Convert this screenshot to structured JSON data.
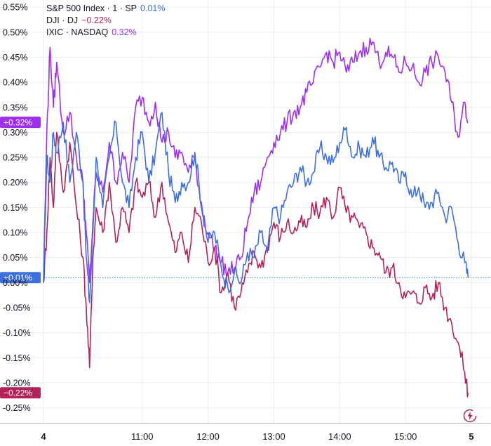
{
  "colors": {
    "sp": "#3d6fe0",
    "dji": "#b3215a",
    "ixic": "#9d2ff0",
    "grid": "#e9ebef",
    "axis_text": "#131722",
    "bottom_axis": "#b2b5be",
    "flash": "#b3215a"
  },
  "legend": [
    {
      "name": "S&P 500 Index · 1 · SP",
      "value": "0.01%"
    },
    {
      "name": "DJI · DJ",
      "value": "−0.22%"
    },
    {
      "name": "IXIC · NASDAQ",
      "value": "0.32%"
    }
  ],
  "flash_icon": "lightning-icon",
  "chart_data": {
    "type": "line",
    "title": "",
    "xlabel": "",
    "ylabel": "",
    "x_ticks": [
      "4",
      "11:00",
      "12:00",
      "13:00",
      "14:00",
      "15:00",
      "5"
    ],
    "x_tick_hours": [
      9.5,
      11,
      12,
      13,
      14,
      15,
      16
    ],
    "xlim": [
      9.5,
      16
    ],
    "y_ticks": [
      "0.55%",
      "0.50%",
      "0.45%",
      "0.40%",
      "0.35%",
      "0.30%",
      "0.25%",
      "0.20%",
      "0.15%",
      "0.10%",
      "0.05%",
      "0.00%",
      "-0.05%",
      "-0.10%",
      "-0.15%",
      "-0.20%",
      "-0.25%"
    ],
    "ylim": [
      -0.28,
      0.56
    ],
    "grid": true,
    "price_labels": [
      {
        "text": "+0.32%",
        "series": "IXIC · NASDAQ"
      },
      {
        "text": "+0.01%",
        "series": "S&P 500 Index · 1 · SP"
      },
      {
        "text": "−0.22%",
        "series": "DJI · DJ"
      }
    ],
    "series": [
      {
        "name": "S&P 500 Index · 1 · SP",
        "color_key": "sp",
        "x": [
          9.5,
          9.55,
          9.6,
          9.65,
          9.7,
          9.8,
          9.9,
          10.0,
          10.1,
          10.15,
          10.2,
          10.25,
          10.3,
          10.4,
          10.5,
          10.6,
          10.7,
          10.8,
          10.9,
          11.0,
          11.1,
          11.2,
          11.3,
          11.4,
          11.5,
          11.6,
          11.7,
          11.8,
          11.9,
          12.0,
          12.1,
          12.2,
          12.3,
          12.4,
          12.5,
          12.6,
          12.7,
          12.8,
          12.9,
          13.0,
          13.1,
          13.2,
          13.3,
          13.4,
          13.5,
          13.6,
          13.7,
          13.8,
          13.9,
          14.0,
          14.1,
          14.2,
          14.3,
          14.4,
          14.5,
          14.6,
          14.7,
          14.8,
          14.9,
          15.0,
          15.1,
          15.2,
          15.3,
          15.4,
          15.5,
          15.6,
          15.7,
          15.8,
          15.9,
          15.95
        ],
        "values": [
          0.0,
          0.25,
          0.2,
          0.3,
          0.26,
          0.32,
          0.2,
          0.3,
          0.2,
          0.05,
          -0.04,
          0.1,
          0.25,
          0.15,
          0.25,
          0.32,
          0.2,
          0.15,
          0.25,
          0.3,
          0.2,
          0.26,
          0.34,
          0.22,
          0.16,
          0.2,
          0.2,
          0.26,
          0.16,
          0.08,
          0.1,
          0.03,
          -0.01,
          0.02,
          0.0,
          0.06,
          0.05,
          0.1,
          0.06,
          0.15,
          0.13,
          0.18,
          0.2,
          0.23,
          0.2,
          0.22,
          0.27,
          0.25,
          0.24,
          0.28,
          0.31,
          0.25,
          0.27,
          0.25,
          0.29,
          0.25,
          0.23,
          0.24,
          0.2,
          0.22,
          0.17,
          0.19,
          0.15,
          0.16,
          0.18,
          0.13,
          0.15,
          0.08,
          0.04,
          0.01
        ]
      },
      {
        "name": "DJI · DJ",
        "color_key": "dji",
        "x": [
          9.5,
          9.55,
          9.6,
          9.65,
          9.7,
          9.8,
          9.9,
          10.0,
          10.1,
          10.15,
          10.2,
          10.25,
          10.3,
          10.4,
          10.5,
          10.6,
          10.7,
          10.8,
          10.9,
          11.0,
          11.1,
          11.2,
          11.3,
          11.4,
          11.5,
          11.6,
          11.7,
          11.8,
          11.9,
          12.0,
          12.1,
          12.2,
          12.3,
          12.4,
          12.5,
          12.6,
          12.7,
          12.8,
          12.9,
          13.0,
          13.1,
          13.2,
          13.3,
          13.4,
          13.5,
          13.6,
          13.7,
          13.8,
          13.9,
          14.0,
          14.1,
          14.2,
          14.3,
          14.4,
          14.5,
          14.6,
          14.7,
          14.8,
          14.9,
          15.0,
          15.1,
          15.2,
          15.3,
          15.4,
          15.5,
          15.6,
          15.7,
          15.8,
          15.9,
          15.95
        ],
        "values": [
          0.0,
          0.1,
          0.25,
          0.15,
          0.3,
          0.18,
          0.28,
          0.15,
          0.05,
          -0.05,
          -0.17,
          0.05,
          0.15,
          0.1,
          0.2,
          0.08,
          0.15,
          0.1,
          0.2,
          0.17,
          0.2,
          0.13,
          0.2,
          0.12,
          0.06,
          0.1,
          0.04,
          0.15,
          0.12,
          0.04,
          0.07,
          -0.02,
          0.02,
          -0.05,
          -0.02,
          0.02,
          0.06,
          0.03,
          0.07,
          0.12,
          0.09,
          0.12,
          0.1,
          0.12,
          0.11,
          0.15,
          0.14,
          0.17,
          0.13,
          0.19,
          0.14,
          0.13,
          0.11,
          0.1,
          0.07,
          0.06,
          0.02,
          0.03,
          0.0,
          -0.03,
          -0.02,
          -0.04,
          -0.01,
          -0.03,
          0.0,
          -0.05,
          -0.08,
          -0.12,
          -0.18,
          -0.22
        ]
      },
      {
        "name": "IXIC · NASDAQ",
        "color_key": "ixic",
        "x": [
          9.5,
          9.55,
          9.6,
          9.65,
          9.7,
          9.8,
          9.9,
          10.0,
          10.1,
          10.15,
          10.2,
          10.25,
          10.3,
          10.4,
          10.5,
          10.6,
          10.7,
          10.8,
          10.9,
          11.0,
          11.1,
          11.2,
          11.3,
          11.4,
          11.5,
          11.6,
          11.7,
          11.8,
          11.9,
          12.0,
          12.1,
          12.2,
          12.3,
          12.4,
          12.5,
          12.6,
          12.7,
          12.8,
          12.9,
          13.0,
          13.1,
          13.2,
          13.3,
          13.4,
          13.5,
          13.6,
          13.7,
          13.8,
          13.9,
          14.0,
          14.1,
          14.2,
          14.3,
          14.4,
          14.5,
          14.6,
          14.7,
          14.8,
          14.9,
          15.0,
          15.1,
          15.2,
          15.3,
          15.4,
          15.5,
          15.6,
          15.7,
          15.8,
          15.9,
          15.95
        ],
        "values": [
          0.0,
          0.3,
          0.47,
          0.35,
          0.44,
          0.3,
          0.34,
          0.25,
          0.2,
          0.1,
          0.0,
          0.12,
          0.22,
          0.18,
          0.28,
          0.2,
          0.26,
          0.2,
          0.35,
          0.37,
          0.32,
          0.36,
          0.28,
          0.3,
          0.25,
          0.26,
          0.22,
          0.25,
          0.15,
          0.1,
          0.07,
          0.04,
          0.02,
          0.03,
          0.05,
          0.12,
          0.18,
          0.2,
          0.25,
          0.28,
          0.3,
          0.32,
          0.34,
          0.35,
          0.38,
          0.4,
          0.43,
          0.46,
          0.44,
          0.46,
          0.42,
          0.44,
          0.46,
          0.47,
          0.48,
          0.44,
          0.46,
          0.45,
          0.42,
          0.44,
          0.43,
          0.4,
          0.42,
          0.44,
          0.45,
          0.42,
          0.36,
          0.29,
          0.36,
          0.32
        ]
      }
    ]
  }
}
